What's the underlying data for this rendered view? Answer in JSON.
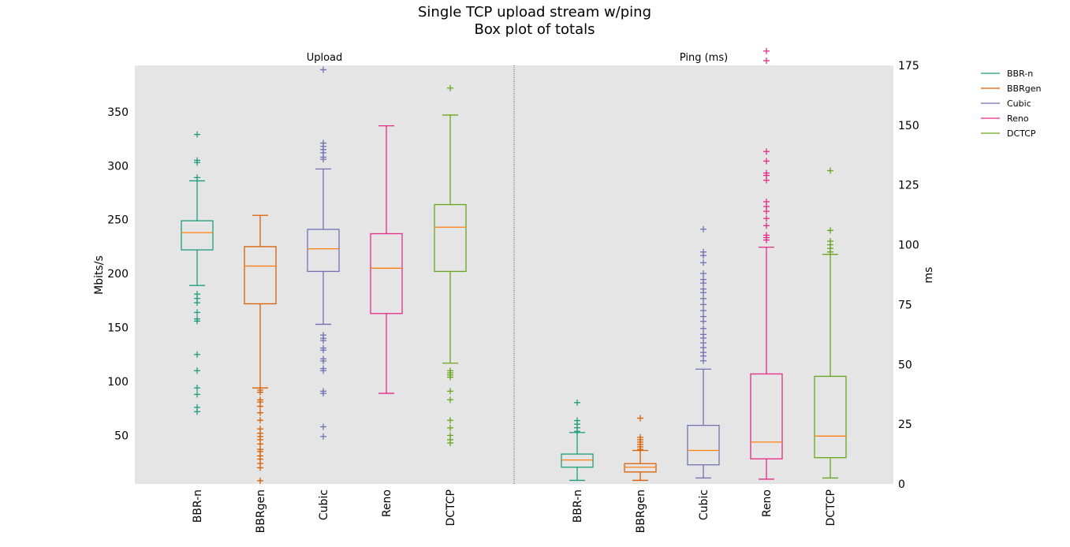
{
  "title_line1": "Single TCP upload stream w/ping",
  "title_line2": "Box plot of totals",
  "chart_data": [
    {
      "type": "box",
      "subplot_title": "Upload",
      "ylabel": "Mbits/s",
      "ylim": [
        5,
        393
      ],
      "yticks": [
        50,
        100,
        150,
        200,
        250,
        300,
        350
      ],
      "categories": [
        "BBR-n",
        "BBRgen",
        "Cubic",
        "Reno",
        "DCTCP"
      ],
      "colors": [
        "#1b9e77",
        "#d95f02",
        "#7570b3",
        "#e7298a",
        "#66a61e"
      ],
      "median_color": "#ff7f0e",
      "boxes": [
        {
          "name": "BBR-n",
          "whisker_low": 189,
          "q1": 222,
          "median": 238,
          "q3": 249,
          "whisker_high": 286,
          "outliers": [
            72,
            76,
            88,
            94,
            110,
            125,
            156,
            158,
            164,
            173,
            177,
            181,
            289,
            303,
            305,
            329
          ]
        },
        {
          "name": "BBRgen",
          "whisker_low": 94,
          "q1": 172,
          "median": 207,
          "q3": 225,
          "whisker_high": 254,
          "outliers": [
            8,
            20,
            24,
            28,
            31,
            35,
            37,
            42,
            46,
            49,
            52,
            56,
            64,
            71,
            77,
            81,
            83,
            90,
            92
          ]
        },
        {
          "name": "Cubic",
          "whisker_low": 153,
          "q1": 202,
          "median": 223,
          "q3": 241,
          "whisker_high": 297,
          "outliers": [
            49,
            58,
            89,
            91,
            110,
            112,
            119,
            121,
            129,
            131,
            138,
            140,
            143,
            306,
            308,
            312,
            315,
            318,
            321,
            389
          ]
        },
        {
          "name": "Reno",
          "whisker_low": 89,
          "q1": 163,
          "median": 205,
          "q3": 237,
          "whisker_high": 337,
          "outliers": []
        },
        {
          "name": "DCTCP",
          "whisker_low": 117,
          "q1": 202,
          "median": 243,
          "q3": 264,
          "whisker_high": 347,
          "outliers": [
            43,
            46,
            50,
            57,
            64,
            83,
            91,
            104,
            106,
            108,
            110,
            372
          ]
        }
      ]
    },
    {
      "type": "box",
      "subplot_title": "Ping (ms)",
      "ylabel": "ms",
      "ylim": [
        0,
        175
      ],
      "yticks": [
        0,
        25,
        50,
        75,
        100,
        125,
        150,
        175
      ],
      "categories": [
        "BBR-n",
        "BBRgen",
        "Cubic",
        "Reno",
        "DCTCP"
      ],
      "colors": [
        "#1b9e77",
        "#d95f02",
        "#7570b3",
        "#e7298a",
        "#66a61e"
      ],
      "median_color": "#ff7f0e",
      "boxes": [
        {
          "name": "BBR-n",
          "whisker_low": 1.5,
          "q1": 7,
          "median": 10,
          "q3": 12.5,
          "whisker_high": 21.5,
          "outliers": [
            22,
            23.5,
            25,
            26.5,
            34
          ]
        },
        {
          "name": "BBRgen",
          "whisker_low": 1.5,
          "q1": 5,
          "median": 7,
          "q3": 8.5,
          "whisker_high": 14,
          "outliers": [
            14.5,
            15.5,
            16.5,
            17.5,
            18.5,
            19.5,
            27.5
          ]
        },
        {
          "name": "Cubic",
          "whisker_low": 2.5,
          "q1": 8,
          "median": 14,
          "q3": 24.5,
          "whisker_high": 48,
          "outliers": [
            51.5,
            53.5,
            55,
            57,
            59,
            61,
            62.5,
            65,
            68,
            70,
            72.5,
            75,
            77.5,
            80,
            81.5,
            84,
            85.5,
            88,
            92.5,
            95.5,
            97,
            106.5
          ]
        },
        {
          "name": "Reno",
          "whisker_low": 2,
          "q1": 10.5,
          "median": 17.5,
          "q3": 46,
          "whisker_high": 99,
          "outliers": [
            102,
            103,
            104,
            108,
            111,
            114,
            116,
            118,
            127,
            129,
            130,
            135,
            139,
            177,
            181
          ]
        },
        {
          "name": "DCTCP",
          "whisker_low": 2.5,
          "q1": 11,
          "median": 20,
          "q3": 45,
          "whisker_high": 96,
          "outliers": [
            97,
            98.5,
            100,
            101.5,
            106,
            131
          ]
        }
      ]
    }
  ],
  "legend": {
    "placement": "top-right-outside",
    "entries": [
      {
        "label": "BBR-n",
        "color": "#1b9e77"
      },
      {
        "label": "BBRgen",
        "color": "#d95f02"
      },
      {
        "label": "Cubic",
        "color": "#7570b3"
      },
      {
        "label": "Reno",
        "color": "#e7298a"
      },
      {
        "label": "DCTCP",
        "color": "#66a61e"
      }
    ]
  }
}
